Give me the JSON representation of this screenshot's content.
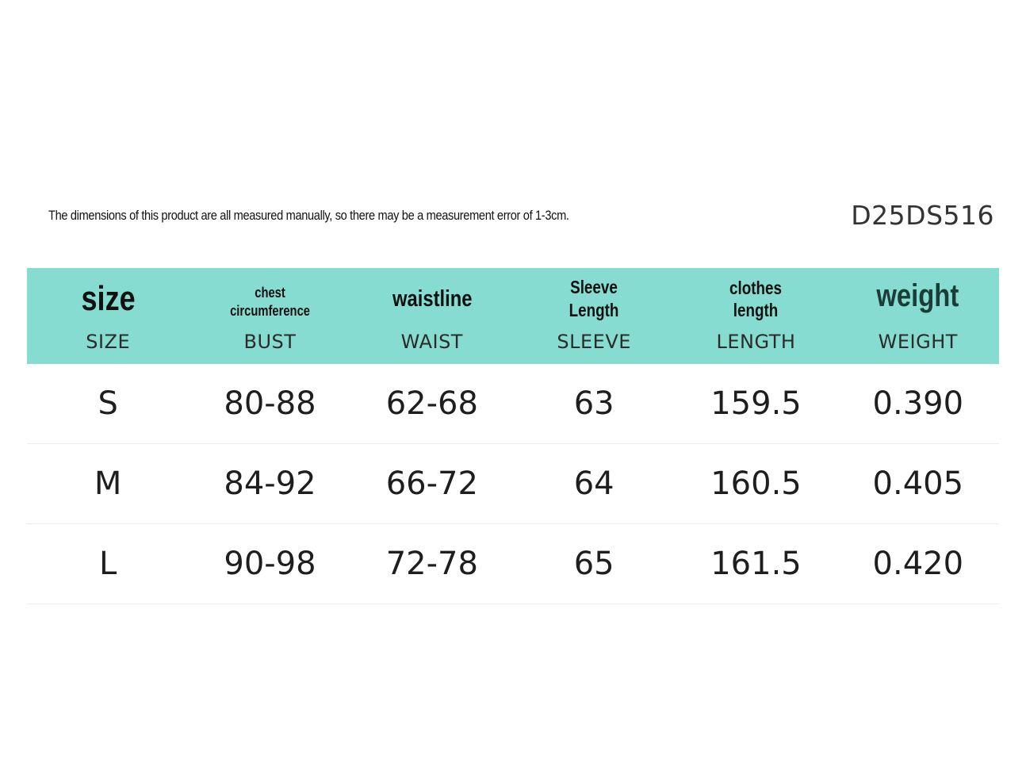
{
  "note": "The dimensions of this product are all measured manually, so there may be a measurement error of 1-3cm.",
  "product_code": "D25DS516",
  "header_color": "#86dcd0",
  "columns": [
    {
      "label": "size",
      "sublabel": "SIZE"
    },
    {
      "label": "chest circumference",
      "sublabel": "BUST"
    },
    {
      "label": "waistline",
      "sublabel": "WAIST"
    },
    {
      "label": "Sleeve Length",
      "sublabel": "SLEEVE"
    },
    {
      "label": "clothes length",
      "sublabel": "LENGTH"
    },
    {
      "label": "weight",
      "sublabel": "WEIGHT"
    }
  ],
  "rows": [
    [
      "S",
      "80-88",
      "62-68",
      "63",
      "159.5",
      "0.390"
    ],
    [
      "M",
      "84-92",
      "66-72",
      "64",
      "160.5",
      "0.405"
    ],
    [
      "L",
      "90-98",
      "72-78",
      "65",
      "161.5",
      "0.420"
    ]
  ]
}
